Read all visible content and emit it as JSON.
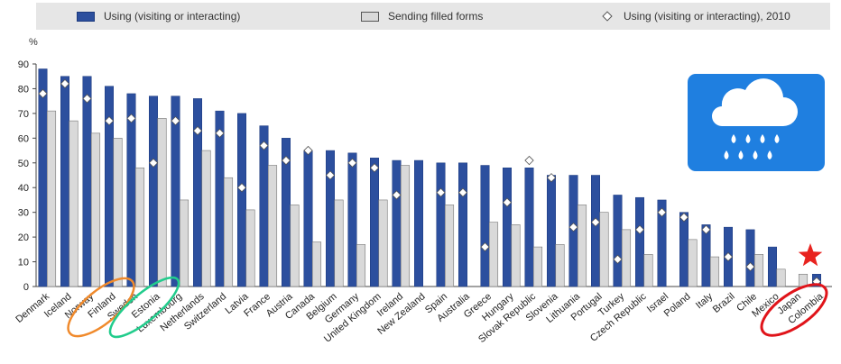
{
  "legend": {
    "series1": "Using (visiting or interacting)",
    "series2": "Sending filled forms",
    "series3": "Using (visiting or interacting), 2010"
  },
  "colors": {
    "using": "#2c4f9e",
    "sending": "#d9d9d9",
    "diamond": "#ffffff",
    "weather_badge": "#1f7fe0",
    "star": "#e8231f",
    "highlight_orange": "#f08a2c",
    "highlight_green": "#22cc8c",
    "highlight_red": "#e0141a"
  },
  "icons": {
    "badge": "rain-cloud-icon",
    "star": "red-star-icon"
  },
  "chart_data": {
    "type": "bar",
    "ylabel": "%",
    "ylim": [
      0,
      90
    ],
    "yticks": [
      0,
      10,
      20,
      30,
      40,
      50,
      60,
      70,
      80,
      90
    ],
    "grid": false,
    "legend_position": "top",
    "categories": [
      "Denmark",
      "Iceland",
      "Norway",
      "Finland",
      "Sweden",
      "Estonia",
      "Luxembourg",
      "Netherlands",
      "Switzerland",
      "Latvia",
      "France",
      "Austria",
      "Canada",
      "Belgium",
      "Germany",
      "United Kingdom",
      "Ireland",
      "New Zealand",
      "Spain",
      "Australia",
      "Greece",
      "Hungary",
      "Slovak Republic",
      "Slovenia",
      "Lithuania",
      "Portugal",
      "Turkey",
      "Czech Republic",
      "Israel",
      "Poland",
      "Italy",
      "Brazil",
      "Chile",
      "Mexico",
      "Japan",
      "Colombia"
    ],
    "series": [
      {
        "name": "Using (visiting or interacting)",
        "kind": "bar",
        "values": [
          88,
          85,
          85,
          81,
          78,
          77,
          77,
          76,
          71,
          70,
          65,
          60,
          55,
          55,
          54,
          52,
          51,
          51,
          50,
          50,
          49,
          48,
          48,
          45,
          45,
          45,
          37,
          36,
          35,
          30,
          25,
          24,
          23,
          16,
          null,
          5
        ]
      },
      {
        "name": "Sending filled forms",
        "kind": "bar",
        "values": [
          71,
          67,
          62,
          60,
          48,
          68,
          35,
          55,
          44,
          31,
          49,
          33,
          18,
          35,
          17,
          35,
          49,
          null,
          33,
          null,
          26,
          25,
          16,
          17,
          33,
          30,
          23,
          13,
          null,
          19,
          12,
          null,
          13,
          7,
          5,
          null
        ]
      },
      {
        "name": "Using (visiting or interacting), 2010",
        "kind": "marker",
        "values": [
          78,
          82,
          76,
          67,
          68,
          50,
          67,
          63,
          62,
          40,
          57,
          51,
          55,
          45,
          50,
          48,
          37,
          null,
          38,
          38,
          16,
          34,
          51,
          44,
          24,
          26,
          11,
          23,
          30,
          28,
          23,
          12,
          8,
          null,
          null,
          2
        ]
      }
    ]
  }
}
